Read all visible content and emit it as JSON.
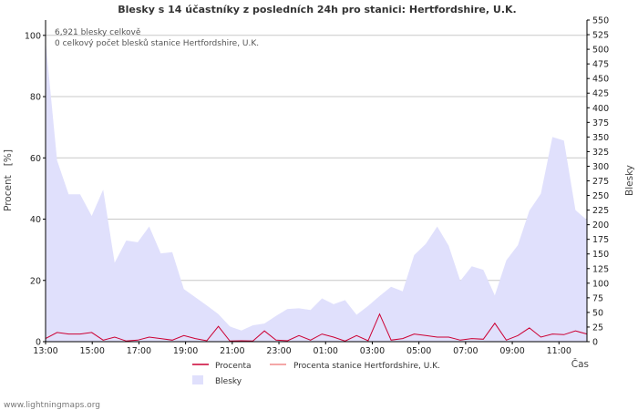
{
  "chart_data": {
    "type": "area",
    "title": "Blesky s 14 účastníky z posledních 24h pro stanici: Hertfordshire, U.K.",
    "xlabel": "Čas",
    "ylabel_left": "Procent   [%]",
    "ylabel_right": "Blesky",
    "ylim_left": [
      0,
      105
    ],
    "ylim_right": [
      0,
      550
    ],
    "yticks_left": [
      0,
      20,
      40,
      60,
      80,
      100
    ],
    "yticks_right": [
      0,
      25,
      50,
      75,
      100,
      125,
      150,
      175,
      200,
      225,
      250,
      275,
      300,
      325,
      350,
      375,
      400,
      425,
      450,
      475,
      500,
      525,
      550
    ],
    "x_tick_labels": [
      "13:00",
      "15:00",
      "17:00",
      "19:00",
      "21:00",
      "23:00",
      "01:00",
      "03:00",
      "05:00",
      "07:00",
      "09:00",
      "11:00"
    ],
    "notes": [
      "6,921 blesky celkově",
      "0 celkový počet blesků stanice Hertfordshire, U.K."
    ],
    "series": [
      {
        "name": "Blesky",
        "axis": "right",
        "color": "#e0e0fc",
        "values": [
          515,
          310,
          252,
          252,
          215,
          260,
          135,
          173,
          170,
          197,
          151,
          153,
          90,
          76,
          62,
          47,
          26,
          19,
          28,
          31,
          44,
          56,
          57,
          54,
          74,
          64,
          71,
          46,
          61,
          78,
          94,
          86,
          148,
          167,
          197,
          164,
          104,
          129,
          123,
          79,
          139,
          165,
          224,
          253,
          350,
          344,
          225,
          208
        ]
      },
      {
        "name": "Procenta",
        "axis": "left",
        "color": "#cc0033",
        "values": [
          1,
          3,
          2.5,
          2.5,
          3,
          0.5,
          1.5,
          0.2,
          0.5,
          1.5,
          1,
          0.5,
          2,
          1,
          0.3,
          5,
          0.2,
          0.3,
          0.2,
          3.5,
          0.5,
          0.3,
          2,
          0.5,
          2.5,
          1.5,
          0.2,
          2,
          0.3,
          9,
          0.5,
          1,
          2.5,
          2,
          1.5,
          1.5,
          0.5,
          1,
          0.8,
          6,
          0.5,
          2,
          4.5,
          1.5,
          2.5,
          2.3,
          3.5,
          2.5
        ]
      },
      {
        "name": "Procenta stanice Hertfordshire, U.K.",
        "axis": "left",
        "color": "#f08a8a",
        "values": []
      }
    ]
  },
  "legend": {
    "percent": "Procenta",
    "station": "Procenta stanice Hertfordshire, U.K.",
    "strikes": "Blesky"
  },
  "credit": "www.lightningmaps.org"
}
